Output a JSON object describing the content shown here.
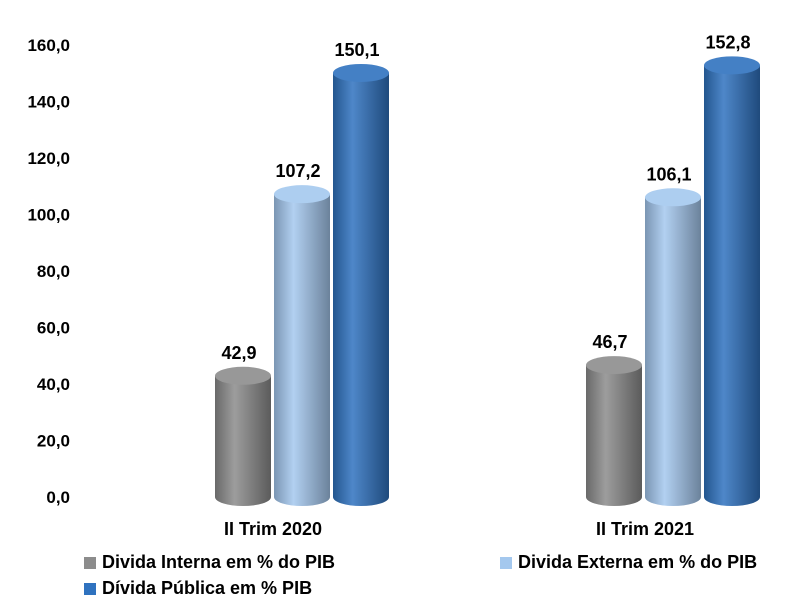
{
  "chart_data": {
    "type": "bar",
    "categories": [
      "II Trim 2020",
      "II Trim 2021"
    ],
    "series": [
      {
        "name": "Divida Interna em % do PIB",
        "values": [
          42.9,
          46.7
        ],
        "color": "#8c8c8c"
      },
      {
        "name": "Divida Externa em % do PIB",
        "values": [
          107.2,
          106.1
        ],
        "color": "#a4c8ee"
      },
      {
        "name": "Dívida Pública em % PIB",
        "values": [
          150.1,
          152.8
        ],
        "color": "#2f72bf"
      }
    ],
    "data_labels": [
      [
        "42,9",
        "46,7"
      ],
      [
        "107,2",
        "106,1"
      ],
      [
        "150,1",
        "152,8"
      ]
    ],
    "ylim": [
      0,
      160
    ],
    "yticks": [
      "0,0",
      "20,0",
      "40,0",
      "60,0",
      "80,0",
      "100,0",
      "120,0",
      "140,0",
      "160,0"
    ],
    "bar_style": "3d-cylinder",
    "grid": false,
    "legend_position": "bottom"
  }
}
